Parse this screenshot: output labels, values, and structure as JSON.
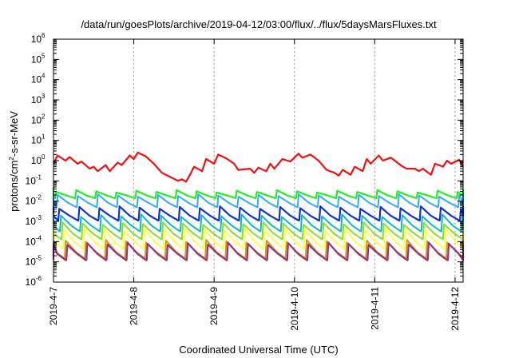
{
  "chart_data": {
    "type": "line",
    "title": "/data/run/goesPlots/archive/2019-04-12/03:00/flux/../flux/5daysMarsFluxes.txt",
    "xlabel": "Coordinated Universal Time (UTC)",
    "ylabel": {
      "base": "protons/cm",
      "sup": "2",
      "rest": "-s-sr-MeV"
    },
    "yscale": "log",
    "ylim": [
      1e-06,
      1000000.0
    ],
    "xlim": [
      0,
      5.1
    ],
    "grid": false,
    "xgrid_dashed": true,
    "x_tick_labels": [
      "2019-4-7",
      "2019-4-8",
      "2019-4-9",
      "2019-4-10",
      "2019-4-11",
      "2019-4-12"
    ],
    "y_tick_labels": [
      {
        "base": "10",
        "exp": "-6"
      },
      {
        "base": "10",
        "exp": "-5"
      },
      {
        "base": "10",
        "exp": "-4"
      },
      {
        "base": "10",
        "exp": "-3"
      },
      {
        "base": "10",
        "exp": "-2"
      },
      {
        "base": "10",
        "exp": "-1"
      },
      {
        "base": "10",
        "exp": "0"
      },
      {
        "base": "10",
        "exp": "1"
      },
      {
        "base": "10",
        "exp": "2"
      },
      {
        "base": "10",
        "exp": "3"
      },
      {
        "base": "10",
        "exp": "4"
      },
      {
        "base": "10",
        "exp": "5"
      },
      {
        "base": "10",
        "exp": "6"
      }
    ],
    "sawtooth_period_days": 0.25,
    "series": [
      {
        "color": "#ee1111",
        "width": 2.2,
        "x": [
          0.0,
          0.05,
          0.15,
          0.2,
          0.3,
          0.35,
          0.45,
          0.5,
          0.55,
          0.65,
          0.7,
          0.8,
          0.85,
          0.95,
          1.0,
          1.05,
          1.15,
          1.25,
          1.35,
          1.45,
          1.55,
          1.6,
          1.65,
          1.7,
          1.75,
          1.85,
          1.9,
          2.0,
          2.05,
          2.15,
          2.25,
          2.3,
          2.45,
          2.5,
          2.55,
          2.65,
          2.7,
          2.75,
          2.85,
          2.95,
          3.05,
          3.1,
          3.2,
          3.3,
          3.35,
          3.4,
          3.5,
          3.55,
          3.6,
          3.7,
          3.75,
          3.85,
          3.9,
          3.95,
          4.05,
          4.1,
          4.2,
          4.3,
          4.35,
          4.4,
          4.5,
          4.55,
          4.6,
          4.7,
          4.75,
          4.85,
          4.9,
          4.95,
          5.05,
          5.1
        ],
        "y": [
          0.7,
          1.8,
          1.0,
          1.5,
          0.7,
          0.9,
          0.4,
          0.5,
          0.3,
          0.6,
          0.3,
          0.8,
          0.6,
          1.8,
          1.2,
          2.5,
          1.6,
          0.7,
          0.25,
          0.16,
          0.1,
          0.12,
          0.09,
          0.2,
          0.5,
          0.3,
          1.2,
          0.7,
          2.0,
          1.3,
          0.7,
          0.35,
          0.4,
          0.25,
          0.45,
          0.3,
          0.7,
          0.4,
          1.2,
          0.9,
          2.2,
          1.4,
          2.0,
          1.0,
          0.6,
          0.35,
          0.25,
          0.18,
          0.35,
          0.2,
          0.5,
          0.3,
          1.2,
          0.7,
          1.8,
          1.0,
          1.4,
          0.7,
          0.5,
          0.4,
          0.4,
          0.3,
          0.4,
          0.2,
          0.7,
          0.5,
          1.0,
          0.7,
          1.1,
          0.5
        ]
      },
      {
        "color": "#22ee22",
        "width": 2.2,
        "peak": 0.035,
        "trough": 0.014,
        "phase": 0.02
      },
      {
        "color": "#33aaff",
        "width": 2.0,
        "peak": 0.022,
        "trough": 0.005,
        "phase": 0.04
      },
      {
        "color": "#1133cc",
        "width": 2.2,
        "peak": 0.0055,
        "trough": 0.0011,
        "phase": 0.06
      },
      {
        "color": "#11bbbb",
        "width": 2.0,
        "peak": 0.0022,
        "trough": 0.00032,
        "phase": 0.08
      },
      {
        "color": "#88dd33",
        "width": 2.0,
        "peak": 0.0009,
        "trough": 0.00013,
        "phase": 0.1
      },
      {
        "color": "#ffff44",
        "width": 2.0,
        "peak": 0.00045,
        "trough": 4.5e-05,
        "phase": 0.12
      },
      {
        "color": "#cc9922",
        "width": 2.0,
        "peak": 0.00012,
        "trough": 1.5e-05,
        "phase": 0.14
      },
      {
        "color": "#993377",
        "width": 2.2,
        "peak": 9e-05,
        "trough": 1.2e-05,
        "phase": 0.16
      }
    ]
  }
}
